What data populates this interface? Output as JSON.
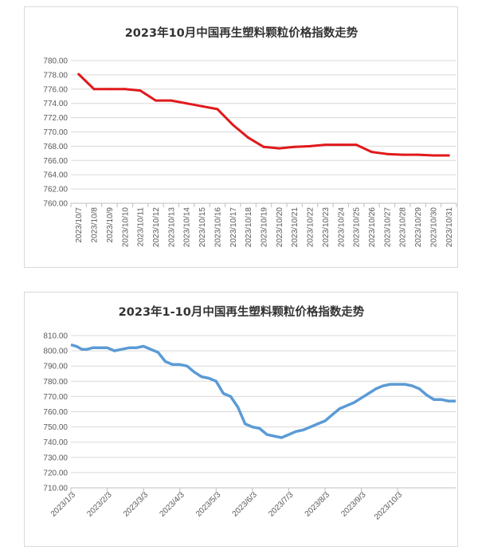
{
  "chart_data": [
    {
      "type": "line",
      "title": "2023年10月中国再生塑料颗粒价格指数走势",
      "xlabel": "",
      "ylabel": "",
      "ylim": [
        760,
        780
      ],
      "ytick_step": 2,
      "grid": true,
      "legend": "none",
      "color": "#e0191b",
      "categories": [
        "2023/10/7",
        "2023/10/8",
        "2023/10/9",
        "2023/10/10",
        "2023/10/11",
        "2023/10/12",
        "2023/10/13",
        "2023/10/14",
        "2023/10/15",
        "2023/10/16",
        "2023/10/17",
        "2023/10/18",
        "2023/10/19",
        "2023/10/20",
        "2023/10/21",
        "2023/10/22",
        "2023/10/23",
        "2023/10/24",
        "2023/10/25",
        "2023/10/26",
        "2023/10/27",
        "2023/10/28",
        "2023/10/29",
        "2023/10/30",
        "2023/10/31"
      ],
      "ytick_labels": [
        "760.00",
        "762.00",
        "764.00",
        "766.00",
        "768.00",
        "770.00",
        "772.00",
        "774.00",
        "776.00",
        "778.00",
        "780.00"
      ],
      "values": [
        778.1,
        776.0,
        776.0,
        776.0,
        775.8,
        774.4,
        774.4,
        774.0,
        773.6,
        773.2,
        771.0,
        769.2,
        767.9,
        767.7,
        767.9,
        768.0,
        768.2,
        768.2,
        768.2,
        767.2,
        766.9,
        766.8,
        766.8,
        766.7,
        766.7
      ]
    },
    {
      "type": "line",
      "title": "2023年1-10月中国再生塑料颗粒价格指数走势",
      "xlabel": "",
      "ylabel": "",
      "ylim": [
        710,
        810
      ],
      "ytick_step": 10,
      "grid": true,
      "legend": "none",
      "color": "#5b9bd5",
      "ytick_labels": [
        "710.00",
        "720.00",
        "730.00",
        "740.00",
        "750.00",
        "760.00",
        "770.00",
        "780.00",
        "790.00",
        "800.00",
        "810.00"
      ],
      "x_tick_labels": [
        "2023/1/3",
        "2023/2/3",
        "2023/3/3",
        "2023/4/3",
        "2023/5/3",
        "2023/6/3",
        "2023/7/3",
        "2023/8/3",
        "2023/9/3",
        "2023/10/3"
      ],
      "x_range": [
        0,
        10.6
      ],
      "x": [
        0,
        0.15,
        0.3,
        0.45,
        0.6,
        0.8,
        1.0,
        1.2,
        1.4,
        1.6,
        1.8,
        2.0,
        2.2,
        2.4,
        2.6,
        2.8,
        3.0,
        3.2,
        3.4,
        3.6,
        3.8,
        4.0,
        4.2,
        4.4,
        4.6,
        4.8,
        5.0,
        5.2,
        5.4,
        5.6,
        5.8,
        6.0,
        6.2,
        6.4,
        6.6,
        6.8,
        7.0,
        7.2,
        7.4,
        7.6,
        7.8,
        8.0,
        8.2,
        8.4,
        8.6,
        8.8,
        9.0,
        9.2,
        9.4,
        9.6,
        9.8,
        10.0,
        10.2,
        10.4,
        10.6
      ],
      "values": [
        804,
        803,
        801,
        801,
        802,
        802,
        802,
        800,
        801,
        802,
        802,
        803,
        801,
        799,
        793,
        791,
        791,
        790,
        786,
        783,
        782,
        780,
        772,
        770,
        763,
        752,
        750,
        749,
        745,
        744,
        743,
        745,
        747,
        748,
        750,
        752,
        754,
        758,
        762,
        764,
        766,
        769,
        772,
        775,
        777,
        778,
        778,
        778,
        777,
        775,
        771,
        768,
        768,
        767,
        767
      ]
    }
  ]
}
